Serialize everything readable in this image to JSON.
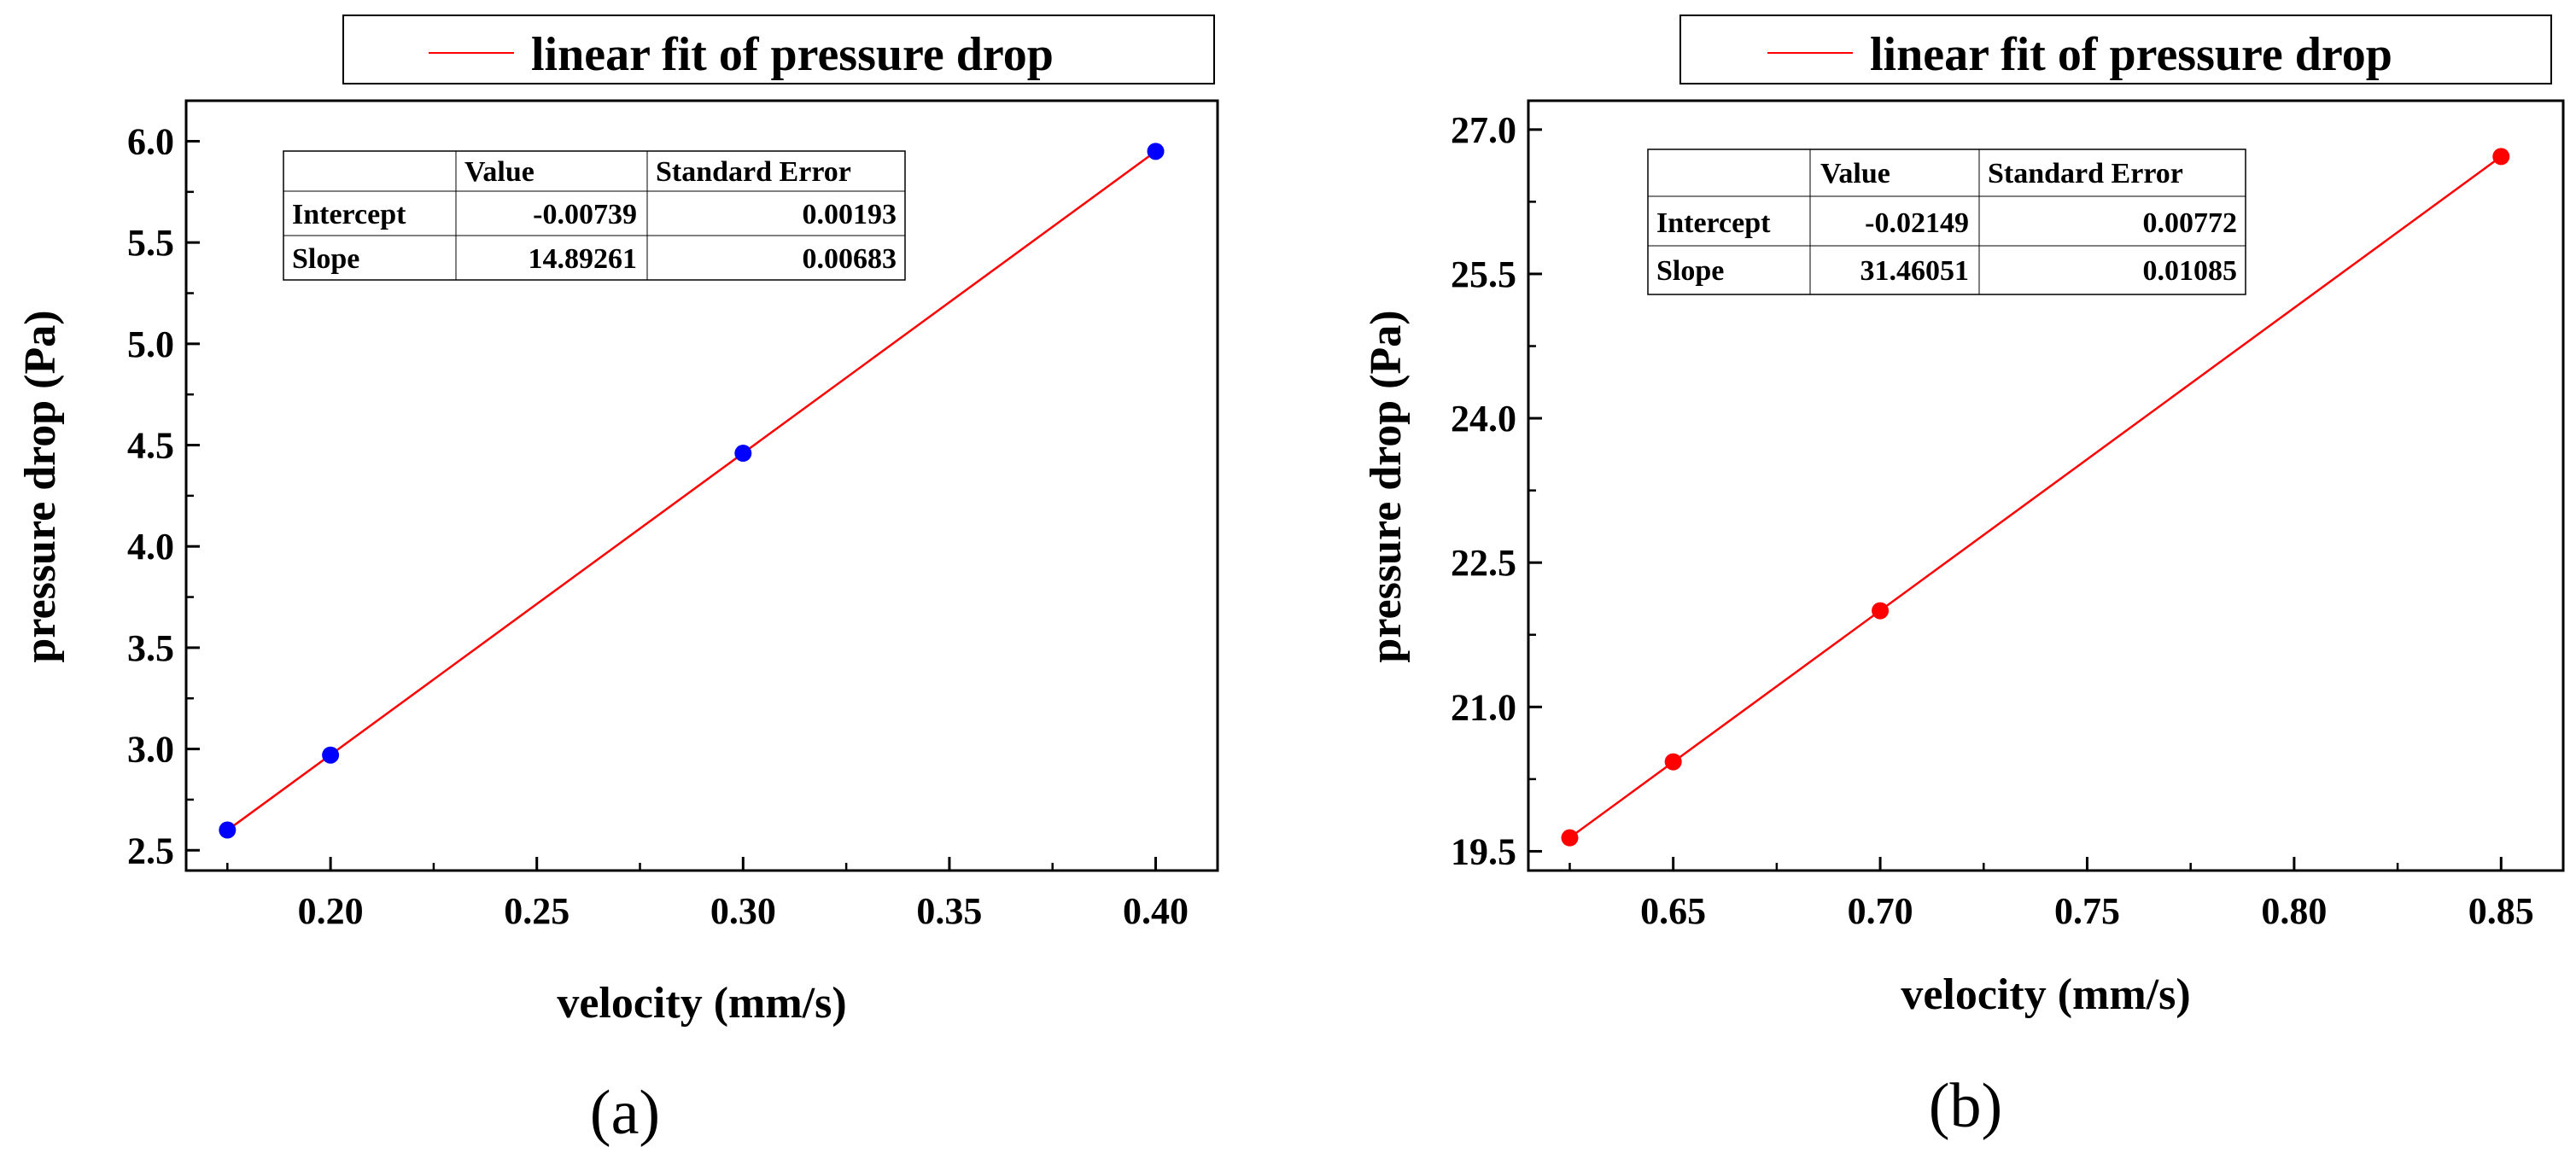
{
  "chart_data": [
    {
      "type": "scatter",
      "panel_label": "(a)",
      "title": "",
      "xlabel": "velocity (mm/s)",
      "ylabel": "pressure drop (Pa)",
      "xlim": [
        0.165,
        0.415
      ],
      "ylim": [
        2.4,
        6.2
      ],
      "xticks": [
        0.2,
        0.25,
        0.3,
        0.35,
        0.4
      ],
      "xtick_labels": [
        "0.20",
        "0.25",
        "0.30",
        "0.35",
        "0.40"
      ],
      "yticks": [
        2.5,
        3.0,
        3.5,
        4.0,
        4.5,
        5.0,
        5.5,
        6.0
      ],
      "ytick_labels": [
        "2.5",
        "3.0",
        "3.5",
        "4.0",
        "4.5",
        "5.0",
        "5.5",
        "6.0"
      ],
      "legend": {
        "label": "linear fit of pressure drop",
        "placement": "top"
      },
      "grid": false,
      "point_color": "#0000ff",
      "fit_color": "#ff0000",
      "series": [
        {
          "name": "pressure drop",
          "x": [
            0.175,
            0.2,
            0.3,
            0.4
          ],
          "y": [
            2.6,
            2.97,
            4.46,
            5.95
          ]
        }
      ],
      "fit": {
        "intercept": -0.00739,
        "slope": 14.89261,
        "x_range": [
          0.175,
          0.4
        ]
      },
      "fit_table": {
        "columns": [
          "",
          "Value",
          "Standard Error"
        ],
        "rows": [
          [
            "Intercept",
            "-0.00739",
            "0.00193"
          ],
          [
            "Slope",
            "14.89261",
            "0.00683"
          ]
        ]
      }
    },
    {
      "type": "scatter",
      "panel_label": "(b)",
      "title": "",
      "xlabel": "velocity (mm/s)",
      "ylabel": "pressure drop (Pa)",
      "xlim": [
        0.615,
        0.865
      ],
      "ylim": [
        19.3,
        27.3
      ],
      "xticks": [
        0.65,
        0.7,
        0.75,
        0.8,
        0.85
      ],
      "xtick_labels": [
        "0.65",
        "0.70",
        "0.75",
        "0.80",
        "0.85"
      ],
      "yticks": [
        19.5,
        21.0,
        22.5,
        24.0,
        25.5,
        27.0
      ],
      "ytick_labels": [
        "19.5",
        "21.0",
        "22.5",
        "24.0",
        "25.5",
        "27.0"
      ],
      "legend": {
        "label": "linear fit of pressure drop",
        "placement": "top"
      },
      "grid": false,
      "point_color": "#ff0000",
      "fit_color": "#ff0000",
      "series": [
        {
          "name": "pressure drop",
          "x": [
            0.625,
            0.65,
            0.7,
            0.85
          ],
          "y": [
            19.64,
            20.43,
            22.0,
            26.72
          ]
        }
      ],
      "fit": {
        "intercept": -0.02149,
        "slope": 31.46051,
        "x_range": [
          0.625,
          0.85
        ]
      },
      "fit_table": {
        "columns": [
          "",
          "Value",
          "Standard Error"
        ],
        "rows": [
          [
            "Intercept",
            "-0.02149",
            "0.00772"
          ],
          [
            "Slope",
            "31.46051",
            "0.01085"
          ]
        ]
      }
    }
  ]
}
